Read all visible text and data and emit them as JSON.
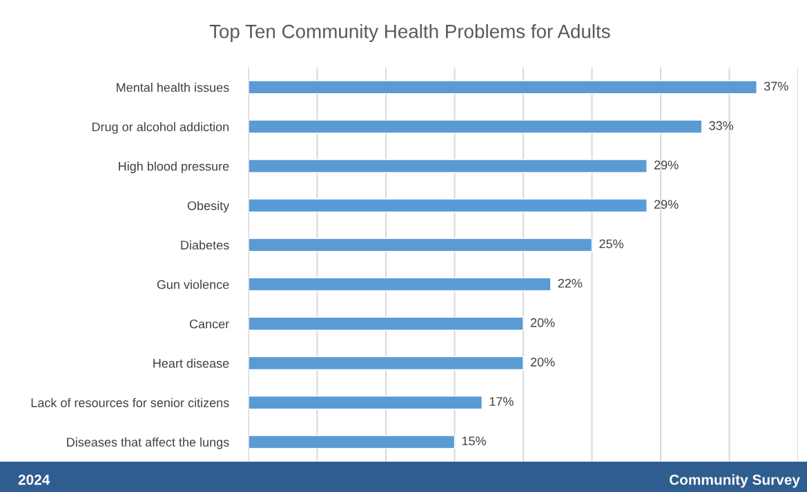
{
  "chart_data": {
    "type": "bar",
    "orientation": "horizontal",
    "title": "Top Ten Community Health Problems for Adults",
    "categories": [
      "Mental health issues",
      "Drug or alcohol addiction",
      "High blood pressure",
      "Obesity",
      "Diabetes",
      "Gun violence",
      "Cancer",
      "Heart disease",
      "Lack of resources for senior citizens",
      "Diseases that affect the lungs"
    ],
    "values": [
      37,
      33,
      29,
      29,
      25,
      22,
      20,
      20,
      17,
      15
    ],
    "value_labels": [
      "37%",
      "33%",
      "29%",
      "29%",
      "25%",
      "22%",
      "20%",
      "20%",
      "17%",
      "15%"
    ],
    "color": "#5b9bd5",
    "xlim": [
      0,
      40
    ],
    "xticks": [
      {
        "value": 0,
        "label": null
      },
      {
        "value": 5,
        "label": null
      },
      {
        "value": 10,
        "label": null
      },
      {
        "value": 15,
        "label": null
      },
      {
        "value": 20,
        "label": null
      },
      {
        "value": 25,
        "label": null
      },
      {
        "value": 30,
        "label": null
      },
      {
        "value": 35,
        "label": null
      },
      {
        "value": 40,
        "label": null
      }
    ],
    "tick_labels": "y",
    "grid": "x",
    "annotations": [
      "2024",
      "Community Survey"
    ]
  }
}
